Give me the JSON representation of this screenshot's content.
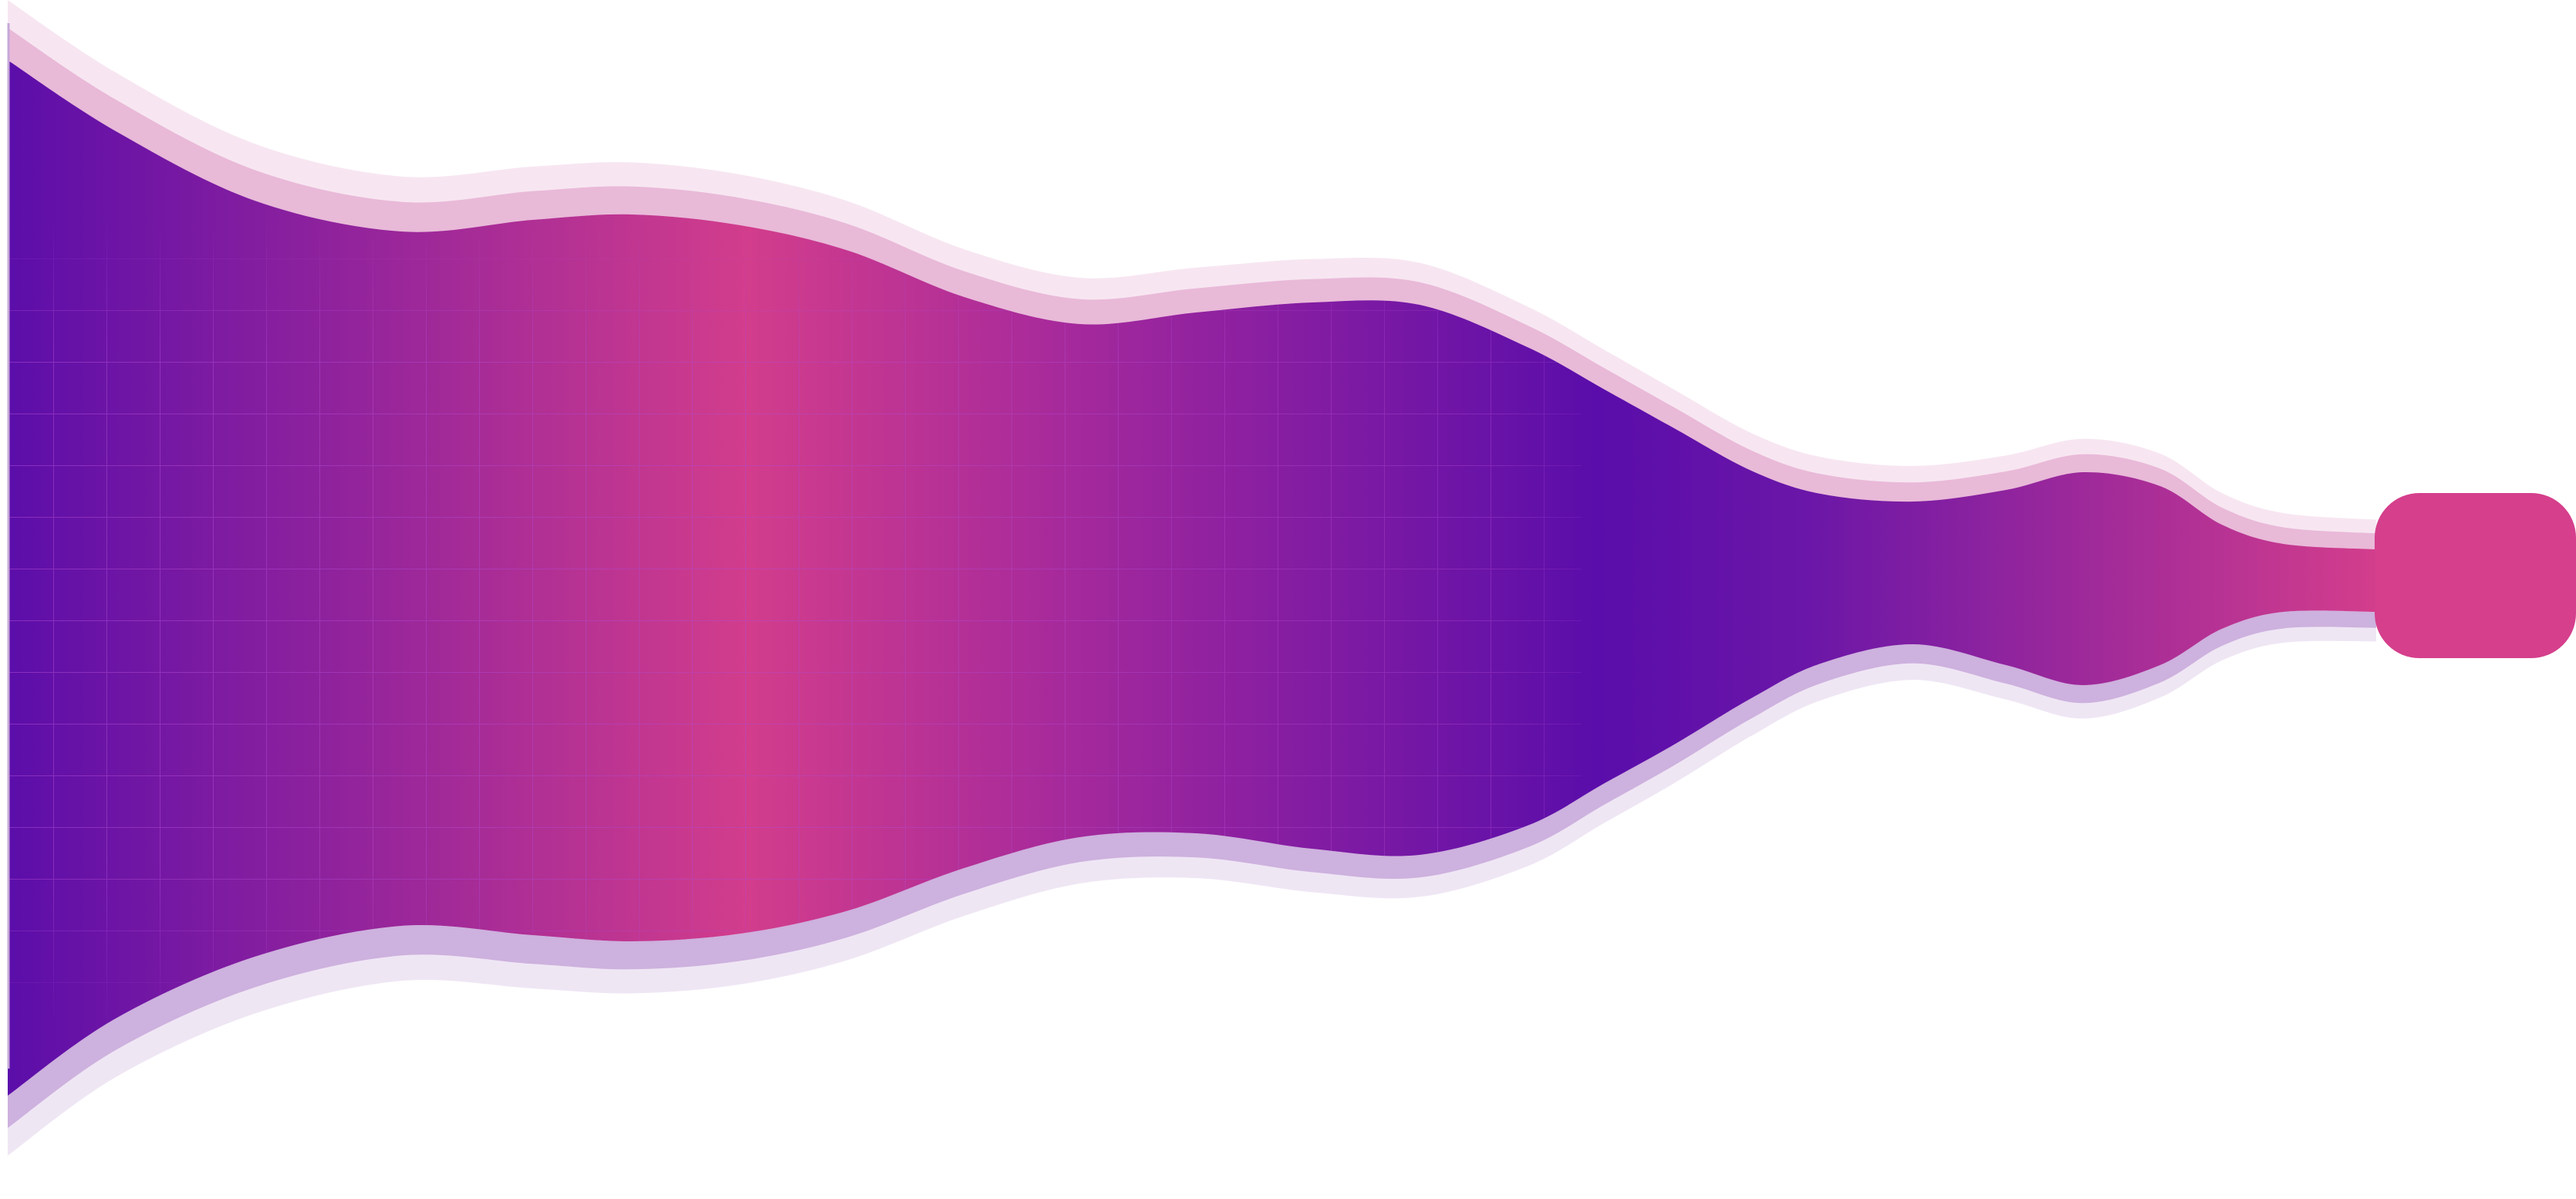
{
  "graphic": {
    "kind": "decorative-flow-ribbon",
    "colors": {
      "purple": "#5a0daa",
      "pink": "#d23d8c",
      "grid": "#9f45c5",
      "halo_top_inner": "#e9b9d8",
      "halo_top_outer": "#f7e6f1",
      "halo_bottom_inner": "#cdb1de",
      "halo_bottom_outer": "#efe6f4",
      "end_cap": "#d53f8c"
    },
    "end_cap_icon": "rounded-square-icon"
  }
}
